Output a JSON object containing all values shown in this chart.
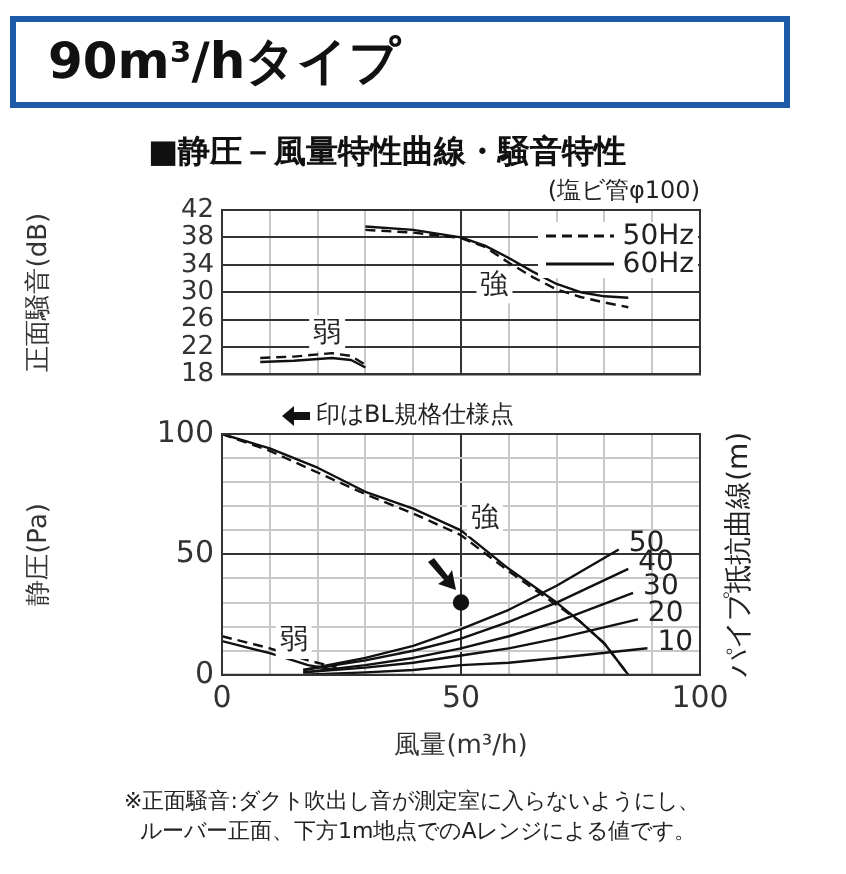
{
  "chart_data": [
    {
      "type": "line",
      "title": "90m³/hタイプ",
      "subtitle": "■静圧－風量特性曲線・騒音特性",
      "ylabel": "正面騒音(dB)",
      "xlim": [
        0,
        100
      ],
      "xticks": [
        {
          "value": 0,
          "label": null
        },
        {
          "value": 10,
          "label": null
        },
        {
          "value": 20,
          "label": null
        },
        {
          "value": 30,
          "label": null
        },
        {
          "value": 40,
          "label": null
        },
        {
          "value": 50,
          "label": null
        },
        {
          "value": 60,
          "label": null
        },
        {
          "value": 70,
          "label": null
        },
        {
          "value": 80,
          "label": null
        },
        {
          "value": 90,
          "label": null
        },
        {
          "value": 100,
          "label": null
        }
      ],
      "ylim": [
        18,
        42
      ],
      "yticks": [
        18,
        22,
        26,
        30,
        34,
        38,
        42
      ],
      "tick_labels": "y",
      "grid": true,
      "legend": "top right",
      "marker": "none",
      "annotations": [
        "(塩ビ管φ100)",
        {
          "text": "強",
          "x": 57,
          "y": 31
        },
        {
          "text": "弱",
          "x": 22,
          "y": 24
        }
      ],
      "series": [
        {
          "name": "50Hz",
          "color": "#111111",
          "line_style": "dashed",
          "x": [
            30,
            40,
            50,
            55,
            60,
            65,
            70,
            75,
            80,
            85
          ],
          "values": [
            39.1,
            38.7,
            37.9,
            36.6,
            34.3,
            32.2,
            30.4,
            29.3,
            28.5,
            27.8
          ]
        },
        {
          "name": "60Hz",
          "color": "#111111",
          "line_style": "solid",
          "x": [
            30,
            40,
            50,
            55,
            60,
            65,
            70,
            75,
            80,
            85
          ],
          "values": [
            39.6,
            39.1,
            38,
            36.8,
            35,
            33,
            31.2,
            30,
            29.4,
            29.2
          ]
        },
        {
          "color": "#111111",
          "line_style": "dashed",
          "x": [
            8,
            15,
            23,
            27,
            30
          ],
          "values": [
            20.4,
            20.6,
            21.1,
            20.7,
            19.4
          ]
        },
        {
          "color": "#111111",
          "line_style": "solid",
          "x": [
            8,
            15,
            23,
            27,
            30
          ],
          "values": [
            19.8,
            20,
            20.4,
            20.1,
            19
          ]
        }
      ]
    },
    {
      "type": "line",
      "xlabel": "風量(m³/h)",
      "ylabel": "静圧(Pa)",
      "y2label": "パイプ抵抗曲線(m)",
      "xlim": [
        0,
        100
      ],
      "xticks": [
        0,
        {
          "value": 10,
          "label": null
        },
        {
          "value": 20,
          "label": null
        },
        {
          "value": 30,
          "label": null
        },
        {
          "value": 40,
          "label": null
        },
        50,
        {
          "value": 60,
          "label": null
        },
        {
          "value": 70,
          "label": null
        },
        {
          "value": 80,
          "label": null
        },
        {
          "value": 90,
          "label": null
        },
        100
      ],
      "ylim": [
        0,
        100
      ],
      "yticks": [
        0,
        {
          "value": 10,
          "label": null
        },
        {
          "value": 20,
          "label": null
        },
        {
          "value": 30,
          "label": null
        },
        {
          "value": 40,
          "label": null
        },
        50,
        {
          "value": 60,
          "label": null
        },
        {
          "value": 70,
          "label": null
        },
        {
          "value": 80,
          "label": null
        },
        {
          "value": 90,
          "label": null
        },
        100
      ],
      "grid": true,
      "marker": "none",
      "annotations": [
        "印はBL規格仕様点",
        {
          "text": "強",
          "x": 55,
          "y": 65
        },
        {
          "text": "弱",
          "x": 15,
          "y": 14
        },
        "※正面騒音:ダクト吹出し音が測定室に入らないようにし、",
        "ルーバー正面、下方1m地点でのAレンジによる値です。"
      ],
      "series": [
        {
          "color": "#111111",
          "line_style": "dashed",
          "x": [
            0,
            10,
            20,
            30,
            40,
            50,
            60,
            70,
            75,
            80,
            85
          ],
          "values": [
            100,
            93,
            84,
            75,
            67,
            58,
            43,
            29,
            22,
            13,
            0
          ]
        },
        {
          "color": "#111111",
          "line_style": "solid",
          "x": [
            0,
            10,
            20,
            30,
            40,
            50,
            60,
            70,
            75,
            80,
            85
          ],
          "values": [
            100,
            94,
            86,
            76,
            69,
            60,
            44,
            30,
            22,
            13,
            0
          ]
        },
        {
          "color": "#111111",
          "line_style": "dashed",
          "x": [
            0,
            10,
            18,
            24
          ],
          "values": [
            16,
            11,
            6,
            3
          ]
        },
        {
          "color": "#111111",
          "line_style": "solid",
          "x": [
            0,
            10,
            18,
            24
          ],
          "values": [
            14,
            9,
            4,
            2
          ]
        },
        {
          "name": "50",
          "color": "#111111",
          "line_style": "solid",
          "x": [
            17,
            30,
            40,
            50,
            60,
            70,
            83
          ],
          "values": [
            2,
            7,
            12,
            19,
            27,
            37,
            52
          ]
        },
        {
          "name": "40",
          "color": "#111111",
          "line_style": "solid",
          "x": [
            17,
            30,
            40,
            50,
            60,
            70,
            85
          ],
          "values": [
            2,
            6,
            10,
            15,
            22,
            30,
            44
          ]
        },
        {
          "name": "30",
          "color": "#111111",
          "line_style": "solid",
          "x": [
            17,
            30,
            40,
            50,
            60,
            70,
            86
          ],
          "values": [
            1,
            4,
            7,
            11,
            16,
            22,
            34
          ]
        },
        {
          "name": "20",
          "color": "#111111",
          "line_style": "solid",
          "x": [
            17,
            30,
            40,
            50,
            60,
            70,
            87
          ],
          "values": [
            1,
            3,
            5,
            8,
            11,
            15,
            23
          ]
        },
        {
          "name": "10",
          "color": "#111111",
          "line_style": "solid",
          "x": [
            17,
            30,
            40,
            50,
            60,
            70,
            89
          ],
          "values": [
            0,
            1,
            2,
            4,
            5,
            7,
            11
          ]
        },
        {
          "type": "scatter",
          "marker": "circle",
          "color": "#111111",
          "x": [
            50
          ],
          "values": [
            30
          ]
        }
      ]
    }
  ]
}
